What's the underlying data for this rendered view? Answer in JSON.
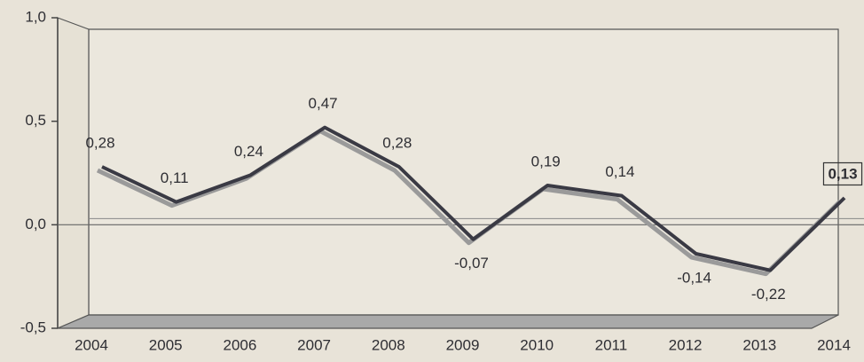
{
  "chart_data": {
    "type": "line",
    "categories": [
      "2004",
      "2005",
      "2006",
      "2007",
      "2008",
      "2009",
      "2010",
      "2011",
      "2012",
      "2013",
      "2014"
    ],
    "values": [
      0.28,
      0.11,
      0.24,
      0.47,
      0.28,
      -0.07,
      0.19,
      0.14,
      -0.14,
      -0.22,
      0.13
    ],
    "value_labels": [
      "0,28",
      "0,11",
      "0,24",
      "0,47",
      "0,28",
      "-0,07",
      "0,19",
      "0,14",
      "-0,14",
      "-0,22",
      "0,13"
    ],
    "color": "#3a3a44",
    "ylim": [
      -0.5,
      1.0
    ],
    "yticks": [
      {
        "value": -0.5,
        "label": "-0,5"
      },
      {
        "value": 0,
        "label": "0,0"
      },
      {
        "value": 0.5,
        "label": "0,5"
      },
      {
        "value": 1.0,
        "label": "1,0"
      }
    ]
  }
}
